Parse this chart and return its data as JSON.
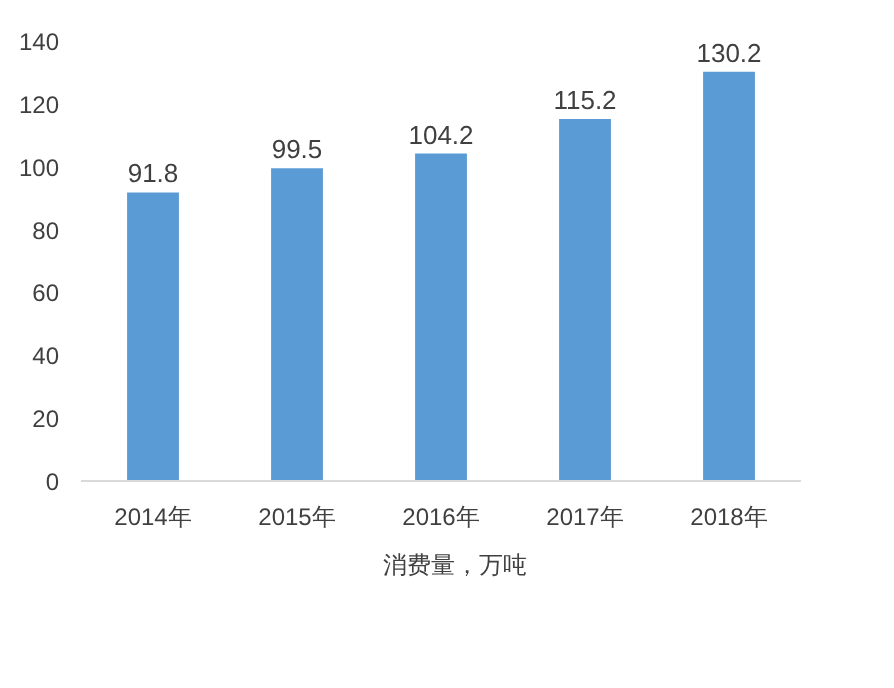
{
  "chart_data": {
    "type": "bar",
    "categories": [
      "2014年",
      "2015年",
      "2016年",
      "2017年",
      "2018年"
    ],
    "series": [
      {
        "name": "消费量，万吨",
        "color": "#5b9bd5",
        "values": [
          91.8,
          99.5,
          104.2,
          115.2,
          130.2
        ]
      }
    ],
    "ylim": [
      0,
      140
    ],
    "yticks": [
      0,
      20,
      40,
      60,
      80,
      100,
      120,
      140
    ],
    "grid": false,
    "legend": "bottom",
    "data_labels": true
  }
}
